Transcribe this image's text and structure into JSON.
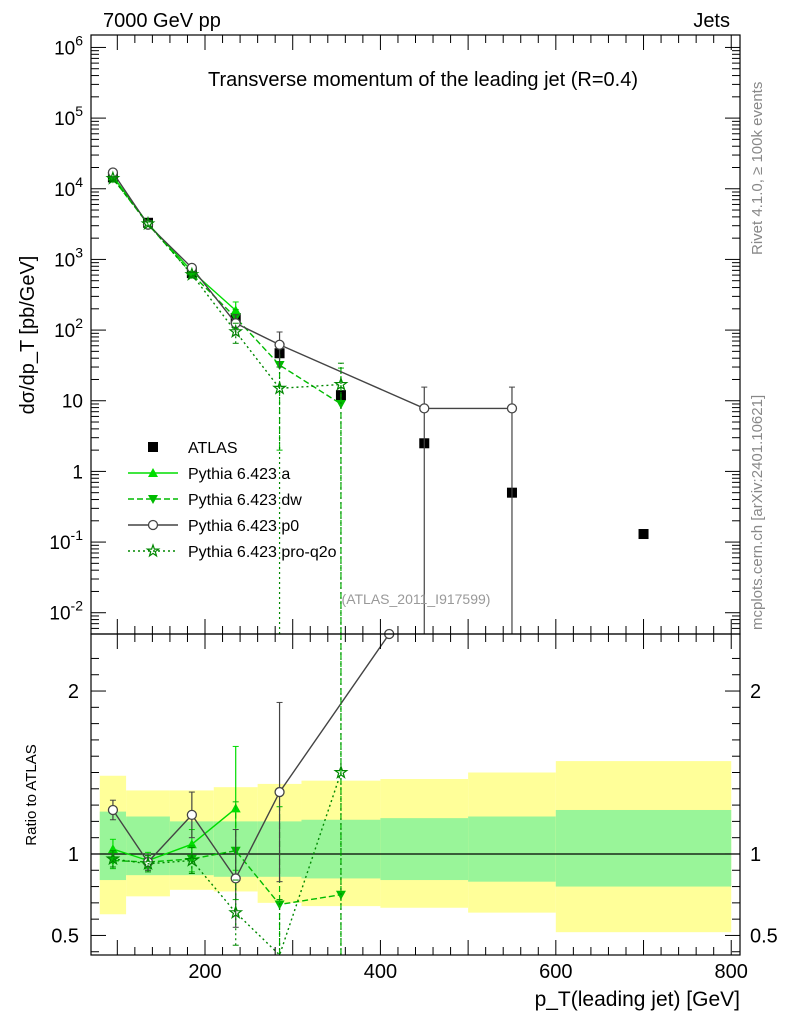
{
  "header": {
    "left": "7000 GeV pp",
    "right": "Jets",
    "side_top": "Rivet 4.1.0, ≥ 100k events",
    "side_bottom": "mcplots.cern.ch [arXiv:2401.10621]"
  },
  "colors": {
    "pythia_a": "#00dd00",
    "pythia_dw": "#00bb00",
    "pythia_p0": "#444444",
    "pythia_proq2o": "#008800",
    "band_inner": "#99f599",
    "band_outer": "#ffff99"
  },
  "chart_data": [
    {
      "type": "line",
      "title": "Transverse momentum of the leading jet (R=0.4)",
      "xlabel": "p_T(leading jet) [GeV]",
      "ylabel": "dσ/dp_T [pb/GeV]",
      "yscale": "log",
      "xlim": [
        70,
        810
      ],
      "ylim": [
        0.005,
        1500000
      ],
      "y_tick_labels": [
        "10^-2",
        "10^-1",
        "1",
        "10",
        "10^2",
        "10^3",
        "10^4",
        "10^5",
        "10^6"
      ],
      "watermark": "(ATLAS_2011_I917599)",
      "legend_position": "center-left",
      "series": [
        {
          "name": "ATLAS",
          "style": "square-marker",
          "x": [
            95,
            135,
            185,
            235,
            285,
            355,
            450,
            550,
            700
          ],
          "y": [
            14500,
            3300,
            640,
            148,
            47,
            12,
            2.5,
            0.5,
            0.13
          ]
        },
        {
          "name": "Pythia 6.423 a",
          "style": "solid-triangle-up",
          "x": [
            95,
            135,
            185,
            235
          ],
          "y": [
            15000,
            3200,
            680,
            190
          ],
          "err": [
            900,
            200,
            70,
            60
          ]
        },
        {
          "name": "Pythia 6.423 dw",
          "style": "dashed-triangle-down",
          "x": [
            95,
            135,
            185,
            235,
            285,
            355
          ],
          "y": [
            14000,
            3150,
            620,
            150,
            32,
            9
          ],
          "err": [
            800,
            200,
            60,
            45,
            30,
            20
          ]
        },
        {
          "name": "Pythia 6.423 p0",
          "style": "solid-open-circle",
          "x": [
            95,
            135,
            185,
            235,
            285,
            450,
            550
          ],
          "y": [
            17000,
            3100,
            760,
            125,
            62,
            7.8,
            7.8
          ],
          "err": [
            1000,
            200,
            90,
            40,
            32,
            7.8,
            7.8
          ]
        },
        {
          "name": "Pythia 6.423 pro-q2o",
          "style": "dotted-open-star",
          "x": [
            95,
            135,
            185,
            235,
            285,
            355
          ],
          "y": [
            14000,
            3200,
            610,
            95,
            15,
            17
          ],
          "err": [
            800,
            200,
            60,
            30,
            15,
            17
          ]
        }
      ]
    },
    {
      "type": "line",
      "xlabel": "p_T(leading jet) [GeV]",
      "ylabel": "Ratio to ATLAS",
      "xlim": [
        70,
        810
      ],
      "ylim": [
        0.38,
        2.35
      ],
      "x_ticks": [
        200,
        400,
        600,
        800
      ],
      "y_ticks": [
        0.5,
        1,
        2
      ],
      "bands": {
        "edges": [
          80,
          110,
          160,
          210,
          260,
          310,
          400,
          500,
          600,
          800
        ],
        "inner": [
          [
            0.84,
            1.26
          ],
          [
            0.87,
            1.23
          ],
          [
            0.87,
            1.2
          ],
          [
            0.86,
            1.2
          ],
          [
            0.86,
            1.2
          ],
          [
            0.85,
            1.21
          ],
          [
            0.84,
            1.22
          ],
          [
            0.83,
            1.23
          ],
          [
            0.8,
            1.27
          ]
        ],
        "outer": [
          [
            0.63,
            1.48
          ],
          [
            0.74,
            1.39
          ],
          [
            0.78,
            1.39
          ],
          [
            0.77,
            1.41
          ],
          [
            0.7,
            1.43
          ],
          [
            0.68,
            1.45
          ],
          [
            0.67,
            1.46
          ],
          [
            0.64,
            1.5
          ],
          [
            0.52,
            1.57
          ]
        ]
      },
      "series": [
        {
          "name": "Pythia 6.423 a",
          "style": "solid-triangle-up",
          "x": [
            95,
            135,
            185,
            235
          ],
          "y": [
            1.03,
            0.96,
            1.06,
            1.28
          ],
          "err": [
            0.06,
            0.05,
            0.09,
            0.38
          ]
        },
        {
          "name": "Pythia 6.423 dw",
          "style": "dashed-triangle-down",
          "x": [
            95,
            135,
            185,
            235,
            285,
            355
          ],
          "y": [
            0.96,
            0.95,
            0.97,
            1.02,
            0.69,
            0.75
          ],
          "err": [
            0.05,
            0.05,
            0.08,
            0.3,
            0.6,
            1.8
          ]
        },
        {
          "name": "Pythia 6.423 p0",
          "style": "solid-open-circle",
          "x": [
            95,
            135,
            185,
            235,
            285,
            410
          ],
          "y": [
            1.27,
            0.95,
            1.24,
            0.85,
            1.38,
            2.35
          ],
          "err": [
            0.06,
            0.05,
            0.14,
            0.3,
            0.55,
            0
          ]
        },
        {
          "name": "Pythia 6.423 pro-q2o",
          "style": "dotted-open-star",
          "x": [
            95,
            135,
            185,
            235,
            285,
            355
          ],
          "y": [
            0.97,
            0.94,
            0.96,
            0.64,
            0.32,
            1.5
          ],
          "err": [
            0.05,
            0.05,
            0.08,
            0.2,
            0.4,
            2.0
          ]
        }
      ]
    }
  ]
}
